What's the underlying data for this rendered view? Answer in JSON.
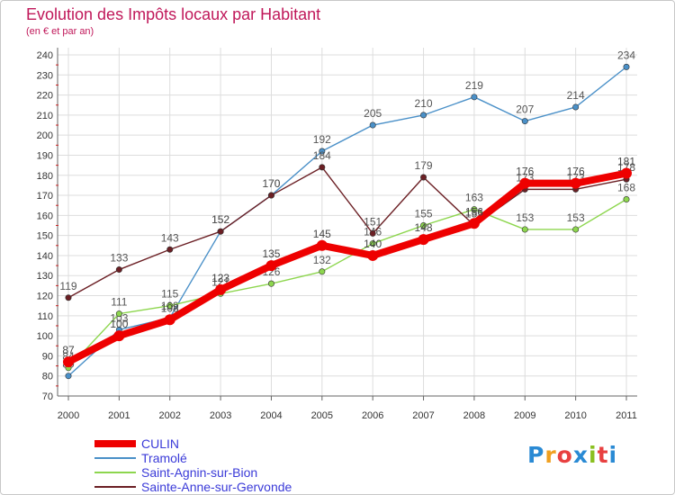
{
  "chart_data": {
    "type": "line",
    "title": "Evolution des Impôts locaux par Habitant",
    "subtitle": "(en € et par an)",
    "xlabel": "",
    "ylabel": "",
    "ylim": [
      70,
      240
    ],
    "ytick_step": 10,
    "grid": true,
    "legend_position": "bottom-left",
    "categories": [
      "2000",
      "2001",
      "2002",
      "2003",
      "2004",
      "2005",
      "2006",
      "2007",
      "2008",
      "2009",
      "2010",
      "2011"
    ],
    "yticks": [
      "70",
      "80",
      "90",
      "100",
      "110",
      "120",
      "130",
      "140",
      "150",
      "160",
      "170",
      "180",
      "190",
      "200",
      "210",
      "220",
      "230",
      "240"
    ],
    "series": [
      {
        "name": "Tramolé",
        "color": "#4a90c8",
        "values": [
          80,
          103,
          109,
          152,
          170,
          192,
          205,
          210,
          219,
          207,
          214,
          234
        ],
        "labels": [
          "80",
          "103",
          "109",
          "152",
          "170",
          "192",
          "205",
          "210",
          "219",
          "207",
          "214",
          "234"
        ]
      },
      {
        "name": "Saint-Agnin-sur-Bion",
        "color": "#8dd64e",
        "values": [
          84,
          111,
          115,
          121,
          126,
          132,
          146,
          155,
          163,
          153,
          153,
          168
        ],
        "labels": [
          "84",
          "111",
          "115",
          "121",
          "126",
          "132",
          "146",
          "155",
          "163",
          "153",
          "153",
          "168"
        ]
      },
      {
        "name": "Sainte-Anne-sur-Gervonde",
        "color": "#6b1f24",
        "values": [
          119,
          133,
          143,
          152,
          170,
          184,
          151,
          179,
          155,
          173,
          173,
          178
        ],
        "labels": [
          "119",
          "133",
          "143",
          "152",
          "170",
          "184",
          "151",
          "179",
          "155",
          "173",
          "173",
          "178"
        ]
      },
      {
        "name": "CULIN",
        "color": "#ee0000",
        "values": [
          87,
          100,
          108,
          123,
          135,
          145,
          140,
          148,
          156,
          176,
          176,
          181
        ],
        "labels": [
          "87",
          "100",
          "108",
          "123",
          "135",
          "145",
          "140",
          "148",
          "156",
          "176",
          "176",
          "181"
        ]
      }
    ]
  },
  "legend": {
    "items": [
      {
        "name": "CULIN",
        "color": "#ee0000"
      },
      {
        "name": "Tramolé",
        "color": "#4a90c8"
      },
      {
        "name": "Saint-Agnin-sur-Bion",
        "color": "#8dd64e"
      },
      {
        "name": "Sainte-Anne-sur-Gervonde",
        "color": "#6b1f24"
      }
    ]
  },
  "brand": {
    "letters": [
      "P",
      "r",
      "o",
      "x",
      "i",
      "t",
      "i"
    ],
    "colors": [
      "#2a8ad4",
      "#f0a020",
      "#e84040",
      "#2a8ad4",
      "#8ac020",
      "#e84040",
      "#2a8ad4"
    ]
  }
}
